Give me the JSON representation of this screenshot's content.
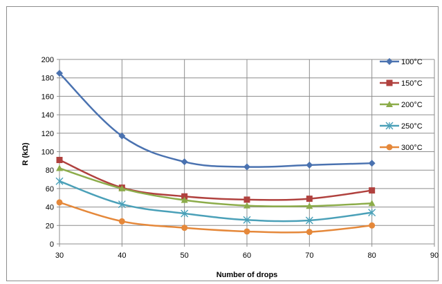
{
  "chart_data": {
    "type": "line",
    "title": "",
    "xlabel": "Number of drops",
    "ylabel": "R (kΩ)",
    "xlim": [
      30,
      90
    ],
    "ylim": [
      0,
      200
    ],
    "x_ticks": [
      30,
      40,
      50,
      60,
      70,
      80,
      90
    ],
    "y_ticks": [
      0,
      20,
      40,
      60,
      80,
      100,
      120,
      140,
      160,
      180,
      200
    ],
    "grid": "vertical and horizontal",
    "legend_position": "right",
    "x": [
      30,
      40,
      50,
      60,
      70,
      80
    ],
    "series": [
      {
        "name": "100°C",
        "values": [
          185,
          117,
          89,
          83.5,
          85.5,
          87.5
        ],
        "color": "#4a72b0",
        "marker": "diamond"
      },
      {
        "name": "150°C",
        "values": [
          91,
          61,
          51.5,
          48,
          49,
          58
        ],
        "color": "#b0413e",
        "marker": "square"
      },
      {
        "name": "200°C",
        "values": [
          82,
          60,
          47.5,
          41.5,
          41,
          44
        ],
        "color": "#8cac4a",
        "marker": "triangle"
      },
      {
        "name": "250°C",
        "values": [
          68,
          43,
          33,
          26,
          25.5,
          34
        ],
        "color": "#4aa0b8",
        "marker": "star"
      },
      {
        "name": "300°C",
        "values": [
          45,
          24.5,
          17.5,
          13.5,
          13,
          20
        ],
        "color": "#e5883a",
        "marker": "circle"
      }
    ]
  }
}
